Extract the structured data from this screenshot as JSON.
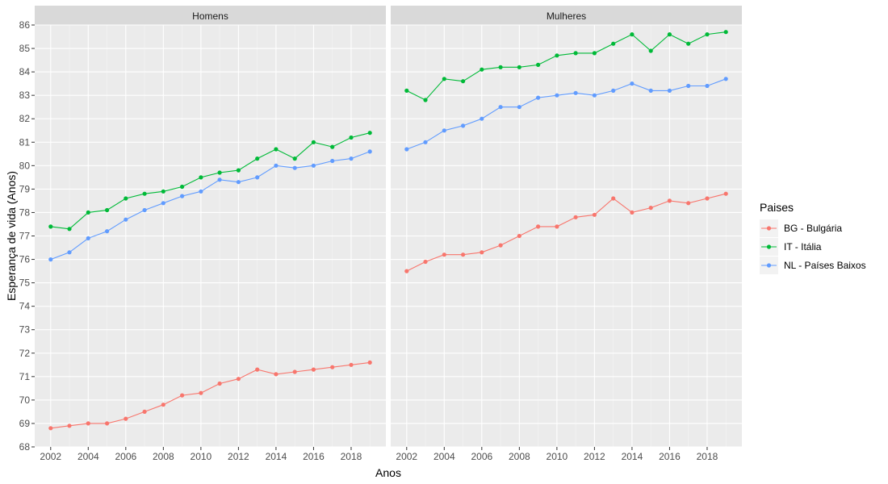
{
  "chart_data": {
    "type": "line",
    "xlabel": "Anos",
    "ylabel": "Esperança de vida (Anos)",
    "ylim": [
      68,
      86
    ],
    "y_ticks": [
      68,
      69,
      70,
      71,
      72,
      73,
      74,
      75,
      76,
      77,
      78,
      79,
      80,
      81,
      82,
      83,
      84,
      85,
      86
    ],
    "x_ticks": [
      2002,
      2004,
      2006,
      2008,
      2010,
      2012,
      2014,
      2016,
      2018
    ],
    "xlim": [
      2001.15,
      2019.85
    ],
    "grid": true,
    "legend": {
      "title": "Paises",
      "placement": "right",
      "entries": [
        {
          "label": "BG - Bulgária",
          "color": "#F8766D"
        },
        {
          "label": "IT - Itália",
          "color": "#00BA38"
        },
        {
          "label": "NL - Países Baixos",
          "color": "#619CFF"
        }
      ]
    },
    "x": [
      2002,
      2003,
      2004,
      2005,
      2006,
      2007,
      2008,
      2009,
      2010,
      2011,
      2012,
      2013,
      2014,
      2015,
      2016,
      2017,
      2018,
      2019
    ],
    "panels": [
      {
        "strip": "Homens",
        "series": [
          {
            "name": "BG - Bulgária",
            "color": "#F8766D",
            "values": [
              68.8,
              68.9,
              69.0,
              69.0,
              69.2,
              69.5,
              69.8,
              70.2,
              70.3,
              70.7,
              70.9,
              71.3,
              71.1,
              71.2,
              71.3,
              71.4,
              71.5,
              71.6
            ]
          },
          {
            "name": "IT - Itália",
            "color": "#00BA38",
            "values": [
              77.4,
              77.3,
              78.0,
              78.1,
              78.6,
              78.8,
              78.9,
              79.1,
              79.5,
              79.7,
              79.8,
              80.3,
              80.7,
              80.3,
              81.0,
              80.8,
              81.2,
              81.4
            ]
          },
          {
            "name": "NL - Países Baixos",
            "color": "#619CFF",
            "values": [
              76.0,
              76.3,
              76.9,
              77.2,
              77.7,
              78.1,
              78.4,
              78.7,
              78.9,
              79.4,
              79.3,
              79.5,
              80.0,
              79.9,
              80.0,
              80.2,
              80.3,
              80.6
            ]
          }
        ]
      },
      {
        "strip": "Mulheres",
        "series": [
          {
            "name": "BG - Bulgária",
            "color": "#F8766D",
            "values": [
              75.5,
              75.9,
              76.2,
              76.2,
              76.3,
              76.6,
              77.0,
              77.4,
              77.4,
              77.8,
              77.9,
              78.6,
              78.0,
              78.2,
              78.5,
              78.4,
              78.6,
              78.8
            ]
          },
          {
            "name": "IT - Itália",
            "color": "#00BA38",
            "values": [
              83.2,
              82.8,
              83.7,
              83.6,
              84.1,
              84.2,
              84.2,
              84.3,
              84.7,
              84.8,
              84.8,
              85.2,
              85.6,
              84.9,
              85.6,
              85.2,
              85.6,
              85.7
            ]
          },
          {
            "name": "NL - Países Baixos",
            "color": "#619CFF",
            "values": [
              80.7,
              81.0,
              81.5,
              81.7,
              82.0,
              82.5,
              82.5,
              82.9,
              83.0,
              83.1,
              83.0,
              83.2,
              83.5,
              83.2,
              83.2,
              83.4,
              83.4,
              83.7
            ]
          }
        ]
      }
    ]
  }
}
